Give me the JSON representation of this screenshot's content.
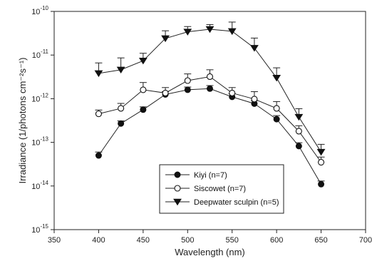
{
  "chart_data": {
    "type": "line",
    "xlabel": "Wavelength (nm)",
    "ylabel": "Irradiance (1/photons cm⁻²s⁻¹)",
    "x_ticks": [
      "350",
      "400",
      "450",
      "500",
      "550",
      "600",
      "650",
      "700"
    ],
    "y_ticks": [
      {
        "base": "10",
        "exp": "-15"
      },
      {
        "base": "10",
        "exp": "-14"
      },
      {
        "base": "10",
        "exp": "-13"
      },
      {
        "base": "10",
        "exp": "-12"
      },
      {
        "base": "10",
        "exp": "-11"
      },
      {
        "base": "10",
        "exp": "-10"
      }
    ],
    "xlim": [
      350,
      700
    ],
    "ylim_log10": [
      -15,
      -10
    ],
    "y_scale": "log",
    "grid": false,
    "legend_position": "bottom-center",
    "x": [
      400,
      425,
      450,
      475,
      500,
      525,
      550,
      575,
      600,
      625,
      650
    ],
    "series": [
      {
        "name": "Kiyi (n=7)",
        "marker": "filled-circle",
        "values": [
          5e-14,
          2.7e-13,
          5.6e-13,
          1.25e-12,
          1.6e-12,
          1.7e-12,
          1.1e-12,
          7.7e-13,
          3.4e-13,
          8.2e-14,
          1.1e-14
        ],
        "error_upper": [
          6e-14,
          3.1e-13,
          6.5e-13,
          1.45e-12,
          1.85e-12,
          2e-12,
          1.3e-12,
          9e-13,
          4.1e-13,
          9.8e-14,
          1.3e-14
        ]
      },
      {
        "name": "Siscowet (n=7)",
        "marker": "open-circle",
        "values": [
          4.5e-13,
          6e-13,
          1.6e-12,
          1.35e-12,
          2.6e-12,
          3.2e-12,
          1.35e-12,
          9.8e-13,
          6e-13,
          1.8e-13,
          3.5e-14
        ],
        "error_upper": [
          5.5e-13,
          7.8e-13,
          2.35e-12,
          1.8e-12,
          3.7e-12,
          4.6e-12,
          1.8e-12,
          1.45e-12,
          8.6e-13,
          2.4e-13,
          4.6e-14
        ]
      },
      {
        "name": "Deepwater sculpin (n=5)",
        "marker": "filled-triangle-down",
        "values": [
          3.8e-12,
          4.6e-12,
          7.4e-12,
          2.4e-11,
          3.4e-11,
          3.9e-11,
          3.5e-11,
          1.45e-11,
          3e-12,
          3.8e-13,
          6e-14
        ],
        "error_upper": [
          6.6e-12,
          8.6e-12,
          1.1e-11,
          3.6e-11,
          4.5e-11,
          5e-11,
          5.7e-11,
          2.45e-11,
          5.1e-12,
          5.9e-13,
          9e-14
        ]
      }
    ]
  }
}
